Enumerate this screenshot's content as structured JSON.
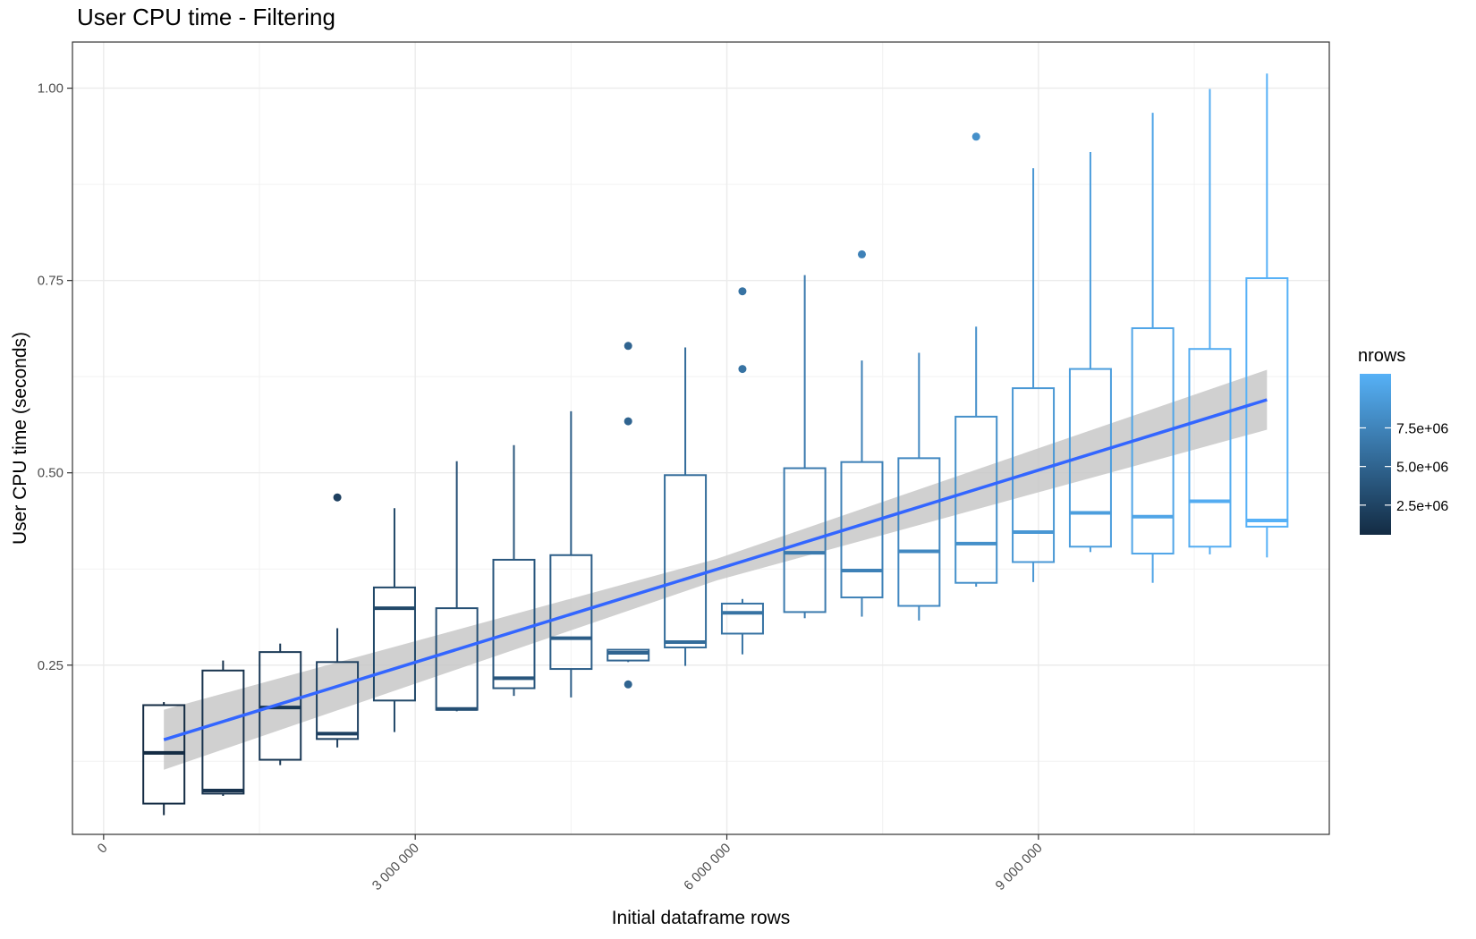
{
  "chart_data": {
    "type": "box",
    "title": "User CPU time - Filtering",
    "xlabel": "Initial dataframe rows",
    "ylabel": "User CPU time (seconds)",
    "xlim": [
      -300000,
      11800000
    ],
    "ylim": [
      0.03,
      1.06
    ],
    "x_ticks": [
      0,
      3000000,
      6000000,
      9000000
    ],
    "x_tick_labels": [
      "0",
      "3 000 000",
      "6 000 000",
      "9 000 000"
    ],
    "x_minor_ticks": [
      1500000,
      4500000,
      7500000,
      10500000
    ],
    "y_ticks": [
      0.25,
      0.5,
      0.75,
      1.0
    ],
    "y_tick_labels": [
      "0.25",
      "0.50",
      "0.75",
      "1.00"
    ],
    "y_minor_ticks": [
      0.125,
      0.375,
      0.625,
      0.875
    ],
    "grid": true,
    "legend": {
      "title": "nrows",
      "position": "right",
      "type": "colorbar",
      "range": [
        580000,
        11000000
      ],
      "breaks": [
        2500000,
        5000000,
        7500000
      ],
      "break_labels": [
        "2.5e+06",
        "5.0e+06",
        "7.5e+06"
      ],
      "color_low": "#132B43",
      "color_high": "#56B1F7"
    },
    "boxes": [
      {
        "x": 580000,
        "lower_whisker": 0.055,
        "q1": 0.07,
        "median": 0.136,
        "q3": 0.198,
        "upper_whisker": 0.202,
        "outliers": []
      },
      {
        "x": 1150000,
        "lower_whisker": 0.08,
        "q1": 0.083,
        "median": 0.087,
        "q3": 0.243,
        "upper_whisker": 0.256,
        "outliers": []
      },
      {
        "x": 1700000,
        "lower_whisker": 0.12,
        "q1": 0.127,
        "median": 0.195,
        "q3": 0.267,
        "upper_whisker": 0.278,
        "outliers": []
      },
      {
        "x": 2250000,
        "lower_whisker": 0.143,
        "q1": 0.154,
        "median": 0.161,
        "q3": 0.254,
        "upper_whisker": 0.298,
        "outliers": [
          0.468
        ]
      },
      {
        "x": 2800000,
        "lower_whisker": 0.163,
        "q1": 0.204,
        "median": 0.324,
        "q3": 0.351,
        "upper_whisker": 0.454,
        "outliers": []
      },
      {
        "x": 3400000,
        "lower_whisker": 0.19,
        "q1": 0.192,
        "median": 0.193,
        "q3": 0.324,
        "upper_whisker": 0.515,
        "outliers": []
      },
      {
        "x": 3950000,
        "lower_whisker": 0.21,
        "q1": 0.22,
        "median": 0.233,
        "q3": 0.387,
        "upper_whisker": 0.536,
        "outliers": []
      },
      {
        "x": 4500000,
        "lower_whisker": 0.208,
        "q1": 0.245,
        "median": 0.285,
        "q3": 0.393,
        "upper_whisker": 0.58,
        "outliers": []
      },
      {
        "x": 5050000,
        "lower_whisker": 0.254,
        "q1": 0.256,
        "median": 0.266,
        "q3": 0.27,
        "upper_whisker": 0.27,
        "outliers": [
          0.225,
          0.567,
          0.665
        ]
      },
      {
        "x": 5600000,
        "lower_whisker": 0.249,
        "q1": 0.273,
        "median": 0.28,
        "q3": 0.497,
        "upper_whisker": 0.663,
        "outliers": []
      },
      {
        "x": 6150000,
        "lower_whisker": 0.264,
        "q1": 0.291,
        "median": 0.318,
        "q3": 0.33,
        "upper_whisker": 0.336,
        "outliers": [
          0.635,
          0.736
        ]
      },
      {
        "x": 6750000,
        "lower_whisker": 0.311,
        "q1": 0.319,
        "median": 0.396,
        "q3": 0.506,
        "upper_whisker": 0.757,
        "outliers": []
      },
      {
        "x": 7300000,
        "lower_whisker": 0.313,
        "q1": 0.338,
        "median": 0.373,
        "q3": 0.514,
        "upper_whisker": 0.646,
        "outliers": [
          0.784
        ]
      },
      {
        "x": 7850000,
        "lower_whisker": 0.308,
        "q1": 0.327,
        "median": 0.398,
        "q3": 0.519,
        "upper_whisker": 0.656,
        "outliers": []
      },
      {
        "x": 8400000,
        "lower_whisker": 0.352,
        "q1": 0.357,
        "median": 0.408,
        "q3": 0.573,
        "upper_whisker": 0.69,
        "outliers": [
          0.937
        ]
      },
      {
        "x": 8950000,
        "lower_whisker": 0.358,
        "q1": 0.384,
        "median": 0.423,
        "q3": 0.61,
        "upper_whisker": 0.896,
        "outliers": []
      },
      {
        "x": 9500000,
        "lower_whisker": 0.397,
        "q1": 0.404,
        "median": 0.448,
        "q3": 0.635,
        "upper_whisker": 0.917,
        "outliers": []
      },
      {
        "x": 10100000,
        "lower_whisker": 0.357,
        "q1": 0.395,
        "median": 0.443,
        "q3": 0.688,
        "upper_whisker": 0.968,
        "outliers": []
      },
      {
        "x": 10650000,
        "lower_whisker": 0.394,
        "q1": 0.404,
        "median": 0.463,
        "q3": 0.661,
        "upper_whisker": 0.999,
        "outliers": []
      },
      {
        "x": 11200000,
        "lower_whisker": 0.39,
        "q1": 0.43,
        "median": 0.438,
        "q3": 0.753,
        "upper_whisker": 1.019,
        "outliers": []
      }
    ],
    "trend": {
      "method": "lm",
      "color": "#3366FF",
      "fit": [
        [
          580000,
          0.153
        ],
        [
          11200000,
          0.595
        ]
      ],
      "ci_lower": [
        [
          580000,
          0.114
        ],
        [
          5900000,
          0.36
        ],
        [
          11200000,
          0.556
        ]
      ],
      "ci_upper": [
        [
          580000,
          0.192
        ],
        [
          5900000,
          0.388
        ],
        [
          11200000,
          0.634
        ]
      ],
      "ci_color": "#C8C8C8"
    }
  }
}
